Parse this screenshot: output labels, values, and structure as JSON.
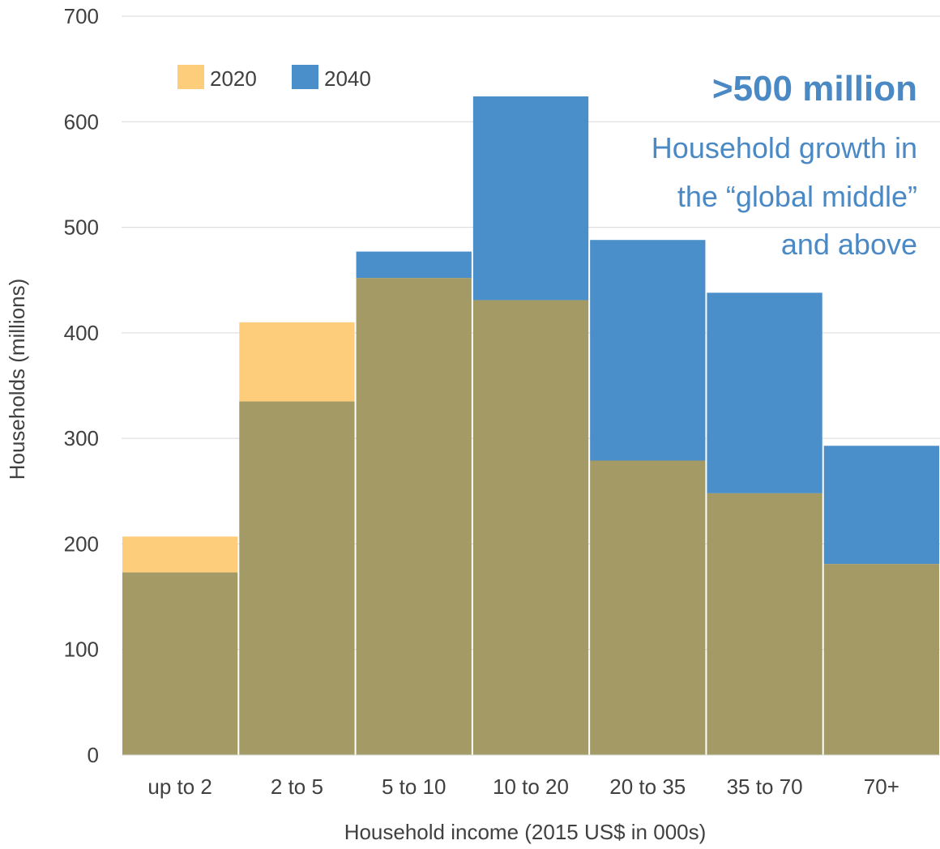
{
  "chart_data": {
    "type": "bar",
    "categories": [
      "up to 2",
      "2 to 5",
      "5 to 10",
      "10 to 20",
      "20 to 35",
      "35 to 70",
      "70+"
    ],
    "series": [
      {
        "name": "2020",
        "values": [
          207,
          410,
          452,
          431,
          279,
          248,
          181
        ],
        "color": "#fdcd7c"
      },
      {
        "name": "2040",
        "values": [
          173,
          335,
          477,
          624,
          488,
          438,
          293
        ],
        "color": "#4a8fc9"
      }
    ],
    "overlap_color": "#a39a66",
    "xlabel": "Household income (2015 US$ in 000s)",
    "ylabel": "Households (millions)",
    "ylim": [
      0,
      700
    ],
    "yticks": [
      "0",
      "100",
      "200",
      "300",
      "400",
      "500",
      "600",
      "700"
    ],
    "grid": true,
    "legend_position": "top-left"
  },
  "callout": {
    "headline": ">500 million",
    "lines": [
      "Household growth in",
      "the “global middle”",
      "and above"
    ]
  }
}
